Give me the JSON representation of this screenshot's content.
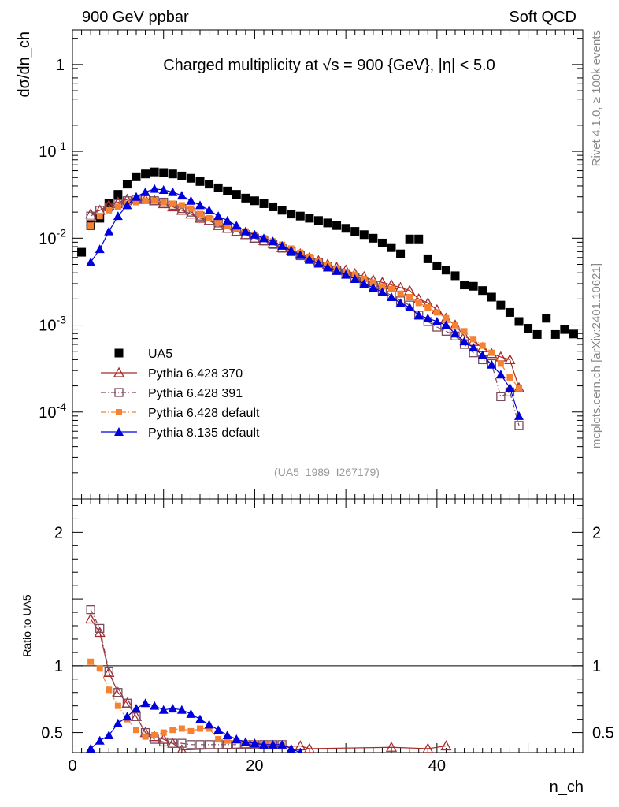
{
  "header": {
    "left": "900 GeV ppbar",
    "right": "Soft QCD"
  },
  "side_labels": {
    "rivet": "Rivet 4.1.0, ≥ 100k events",
    "mcplots": "mcplots.cern.ch [arXiv:2401.10621]"
  },
  "chart_data": {
    "type": "scatter",
    "title": "Charged multiplicity at √s = 900 {GeV}, |η| < 5.0",
    "analysis_tag": "(UA5_1989_I267179)",
    "xlabel": "n_ch",
    "ylabel": "dσ/dn_ch",
    "ratio_ylabel": "Ratio to UA5",
    "xlim": [
      0,
      56
    ],
    "ylim_log": [
      1e-05,
      2.5
    ],
    "ratio_ylim": [
      0.35,
      2.25
    ],
    "x_ticks": [
      "0",
      "20",
      "40"
    ],
    "y_ticks": [
      "10^-4",
      "10^-3",
      "10^-2",
      "10^-1",
      "1"
    ],
    "ratio_ticks": [
      "0.5",
      "1",
      "2"
    ],
    "legend_position": "middle-left",
    "series": [
      {
        "name": "UA5",
        "color": "#000000",
        "marker": "filled-square",
        "x": [
          1,
          2,
          3,
          4,
          5,
          6,
          7,
          8,
          9,
          10,
          11,
          12,
          13,
          14,
          15,
          16,
          17,
          18,
          19,
          20,
          21,
          22,
          23,
          24,
          25,
          26,
          27,
          28,
          29,
          30,
          31,
          32,
          33,
          34,
          35,
          36,
          37,
          38,
          39,
          40,
          41,
          42,
          43,
          44,
          45,
          46,
          47,
          48,
          49,
          50,
          51,
          52,
          53,
          54,
          55
        ],
        "y": [
          0.0069,
          0.014,
          0.017,
          0.025,
          0.032,
          0.042,
          0.051,
          0.055,
          0.058,
          0.057,
          0.055,
          0.052,
          0.049,
          0.045,
          0.042,
          0.038,
          0.035,
          0.032,
          0.029,
          0.027,
          0.025,
          0.023,
          0.021,
          0.019,
          0.018,
          0.017,
          0.016,
          0.015,
          0.014,
          0.013,
          0.012,
          0.011,
          0.01,
          0.0088,
          0.0078,
          0.0066,
          0.0098,
          0.0098,
          0.0058,
          0.0048,
          0.0043,
          0.0037,
          0.0029,
          0.0028,
          0.0025,
          0.0021,
          0.0017,
          0.0014,
          0.0011,
          0.00092,
          0.00078,
          0.0012,
          0.00078,
          0.00089,
          0.00079
        ]
      },
      {
        "name": "Pythia 6.428 370",
        "color": "#a52a2a",
        "marker": "open-triangle",
        "line": "solid",
        "x": [
          2,
          3,
          4,
          5,
          6,
          7,
          8,
          9,
          10,
          11,
          12,
          13,
          14,
          15,
          16,
          17,
          18,
          19,
          20,
          21,
          22,
          23,
          24,
          25,
          26,
          27,
          28,
          29,
          30,
          31,
          32,
          33,
          34,
          35,
          36,
          37,
          38,
          39,
          40,
          41,
          42,
          43,
          44,
          45,
          46,
          47,
          48,
          49
        ],
        "y": [
          0.019,
          0.021,
          0.024,
          0.026,
          0.028,
          0.029,
          0.028,
          0.027,
          0.025,
          0.023,
          0.021,
          0.019,
          0.017,
          0.016,
          0.014,
          0.013,
          0.012,
          0.011,
          0.01,
          0.0094,
          0.0087,
          0.0078,
          0.0072,
          0.0066,
          0.006,
          0.0055,
          0.005,
          0.0046,
          0.0043,
          0.0039,
          0.0036,
          0.0033,
          0.0031,
          0.0029,
          0.0027,
          0.0025,
          0.002,
          0.0018,
          0.0015,
          0.0012,
          0.001,
          0.00075,
          0.00065,
          0.00055,
          0.00047,
          0.00043,
          0.0004,
          0.00019
        ]
      },
      {
        "name": "Pythia 6.428 391",
        "color": "#7b4a5a",
        "marker": "open-square",
        "line": "dash-dot",
        "x": [
          2,
          3,
          4,
          5,
          6,
          7,
          8,
          9,
          10,
          11,
          12,
          13,
          14,
          15,
          16,
          17,
          18,
          19,
          20,
          21,
          22,
          23,
          24,
          25,
          26,
          27,
          28,
          29,
          30,
          31,
          32,
          33,
          34,
          35,
          36,
          37,
          38,
          39,
          40,
          41,
          42,
          43,
          44,
          45,
          46,
          47,
          48,
          49
        ],
        "y": [
          0.018,
          0.021,
          0.023,
          0.025,
          0.027,
          0.028,
          0.028,
          0.027,
          0.026,
          0.024,
          0.022,
          0.02,
          0.018,
          0.016,
          0.015,
          0.013,
          0.012,
          0.011,
          0.01,
          0.0093,
          0.0085,
          0.0077,
          0.007,
          0.0063,
          0.0057,
          0.0052,
          0.0047,
          0.0043,
          0.0039,
          0.0035,
          0.0031,
          0.0028,
          0.0025,
          0.0022,
          0.0019,
          0.0017,
          0.0013,
          0.0011,
          0.00095,
          0.00085,
          0.00075,
          0.0006,
          0.00048,
          0.0004,
          0.00036,
          0.00015,
          0.00017,
          7e-05
        ]
      },
      {
        "name": "Pythia 6.428 default",
        "color": "#f58231",
        "marker": "filled-small-square",
        "line": "dash-dot",
        "x": [
          2,
          3,
          4,
          5,
          6,
          7,
          8,
          9,
          10,
          11,
          12,
          13,
          14,
          15,
          16,
          17,
          18,
          19,
          20,
          21,
          22,
          23,
          24,
          25,
          26,
          27,
          28,
          29,
          30,
          31,
          32,
          33,
          34,
          35,
          36,
          37,
          38,
          39,
          40,
          41,
          42,
          43,
          44,
          45,
          46,
          47,
          48,
          49
        ],
        "y": [
          0.014,
          0.018,
          0.021,
          0.023,
          0.025,
          0.026,
          0.027,
          0.027,
          0.026,
          0.025,
          0.024,
          0.022,
          0.019,
          0.017,
          0.015,
          0.014,
          0.013,
          0.012,
          0.011,
          0.01,
          0.0092,
          0.0084,
          0.0076,
          0.0068,
          0.0061,
          0.0055,
          0.0049,
          0.0045,
          0.0041,
          0.0038,
          0.0034,
          0.0031,
          0.0028,
          0.0026,
          0.0023,
          0.0021,
          0.0018,
          0.0016,
          0.0014,
          0.0012,
          0.001,
          0.00085,
          0.00069,
          0.00058,
          0.00048,
          0.00036,
          0.00025,
          0.00019
        ]
      },
      {
        "name": "Pythia 8.135 default",
        "color": "#0000dd",
        "marker": "filled-triangle",
        "line": "solid",
        "x": [
          2,
          3,
          4,
          5,
          6,
          7,
          8,
          9,
          10,
          11,
          12,
          13,
          14,
          15,
          16,
          17,
          18,
          19,
          20,
          21,
          22,
          23,
          24,
          25,
          26,
          27,
          28,
          29,
          30,
          31,
          32,
          33,
          34,
          35,
          36,
          37,
          38,
          39,
          40,
          41,
          42,
          43,
          44,
          45,
          46,
          47,
          48,
          49
        ],
        "y": [
          0.0053,
          0.0075,
          0.012,
          0.018,
          0.024,
          0.03,
          0.034,
          0.037,
          0.036,
          0.034,
          0.031,
          0.027,
          0.024,
          0.021,
          0.018,
          0.016,
          0.014,
          0.012,
          0.011,
          0.01,
          0.0092,
          0.0082,
          0.0072,
          0.0064,
          0.0057,
          0.0051,
          0.0046,
          0.0042,
          0.0038,
          0.0034,
          0.003,
          0.0027,
          0.0024,
          0.0021,
          0.0018,
          0.0016,
          0.0013,
          0.0012,
          0.0011,
          0.001,
          0.0008,
          0.00065,
          0.00055,
          0.00045,
          0.00035,
          0.00027,
          0.00019,
          9e-05
        ]
      }
    ],
    "ratio_series": [
      {
        "name": "Pythia 6.428 370",
        "x": [
          2,
          3,
          4,
          5,
          6,
          7,
          8,
          9,
          10,
          11,
          12,
          25,
          26,
          35,
          39,
          41
        ],
        "y": [
          1.35,
          1.25,
          0.95,
          0.8,
          0.72,
          0.62,
          0.5,
          0.47,
          0.45,
          0.42,
          0.37,
          0.4,
          0.38,
          0.39,
          0.38,
          0.4
        ]
      },
      {
        "name": "Pythia 6.428 391",
        "x": [
          2,
          3,
          4,
          5,
          6,
          7,
          8,
          9,
          10,
          11,
          12,
          13,
          14,
          15,
          16,
          17,
          18,
          19,
          20,
          21,
          22,
          23
        ],
        "y": [
          1.42,
          1.28,
          0.96,
          0.8,
          0.72,
          0.62,
          0.5,
          0.45,
          0.43,
          0.42,
          0.42,
          0.41,
          0.41,
          0.41,
          0.41,
          0.41,
          0.41,
          0.41,
          0.41,
          0.41,
          0.41,
          0.41
        ]
      },
      {
        "name": "Pythia 6.428 default",
        "x": [
          2,
          3,
          4,
          5,
          6,
          7,
          8,
          9,
          10,
          11,
          12,
          13,
          14,
          15,
          16,
          17,
          18,
          19,
          20,
          21,
          22,
          23
        ],
        "y": [
          1.03,
          0.98,
          0.82,
          0.7,
          0.6,
          0.52,
          0.47,
          0.48,
          0.5,
          0.52,
          0.53,
          0.51,
          0.53,
          0.53,
          0.45,
          0.44,
          0.44,
          0.42,
          0.42,
          0.41,
          0.41,
          0.4
        ]
      },
      {
        "name": "Pythia 8.135 default",
        "x": [
          2,
          3,
          4,
          5,
          6,
          7,
          8,
          9,
          10,
          11,
          12,
          13,
          14,
          15,
          16,
          17,
          18,
          19,
          20,
          21,
          22,
          23,
          24,
          25
        ],
        "y": [
          0.38,
          0.44,
          0.48,
          0.57,
          0.62,
          0.68,
          0.72,
          0.7,
          0.67,
          0.68,
          0.67,
          0.64,
          0.6,
          0.56,
          0.52,
          0.48,
          0.45,
          0.43,
          0.42,
          0.41,
          0.41,
          0.41,
          0.38,
          0.35
        ]
      }
    ]
  }
}
